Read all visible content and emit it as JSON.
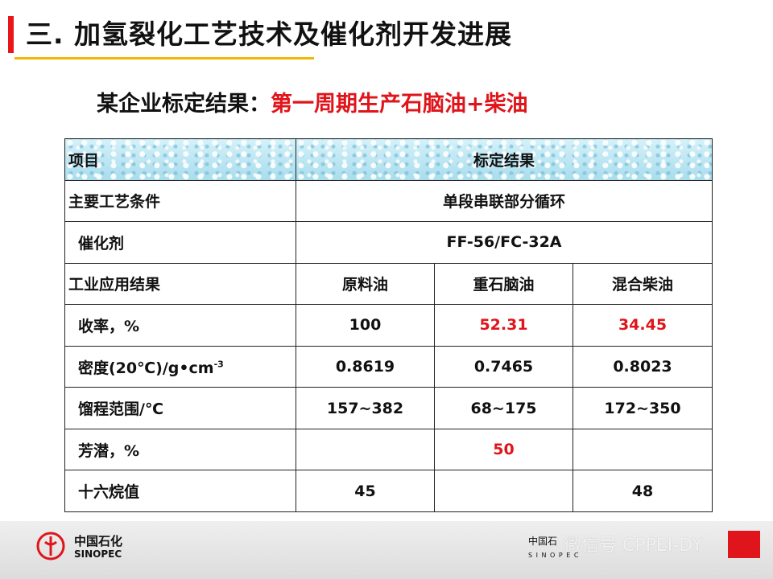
{
  "slide": {
    "title": "三. 加氢裂化工艺技术及催化剂开发进展",
    "subtitle_lead": "某企业标定结果：",
    "subtitle_highlight": "第一周期生产石脑油+柴油"
  },
  "table": {
    "header": {
      "item": "项目",
      "result": "标定结果"
    },
    "process_conditions": {
      "label": "主要工艺条件",
      "value": "单段串联部分循环"
    },
    "catalyst": {
      "label": "催化剂",
      "value": "FF-56/FC-32A"
    },
    "results_header": {
      "label": "工业应用结果",
      "col1": "原料油",
      "col2": "重石脑油",
      "col3": "混合柴油"
    },
    "rows": [
      {
        "label": "收率，%",
        "c1": "100",
        "c2": "52.31",
        "c3": "34.45"
      },
      {
        "label_main": "密度(20℃)/g•cm",
        "label_sup": "-3",
        "c1": "0.8619",
        "c2": "0.7465",
        "c3": "0.8023"
      },
      {
        "label": "馏程范围/℃",
        "c1": "157~382",
        "c2": "68~175",
        "c3": "172~350"
      },
      {
        "label": "芳潜，%",
        "c1": "",
        "c2": "50",
        "c3": ""
      },
      {
        "label": "十六烷值",
        "c1": "45",
        "c2": "",
        "c3": "48"
      }
    ]
  },
  "footer": {
    "logo_cn": "中国石化",
    "logo_en": "SINOPEC",
    "institute_cn": "中国石",
    "institute_en": "S I N O P E C",
    "watermark": "微信号 CPPEI-DY"
  },
  "colors": {
    "accent_red": "#e0151b",
    "underline_yellow": "#f2b705",
    "header_blue": "#b9e6f3"
  },
  "icons": {
    "logo": "sinopec-logo-icon"
  }
}
